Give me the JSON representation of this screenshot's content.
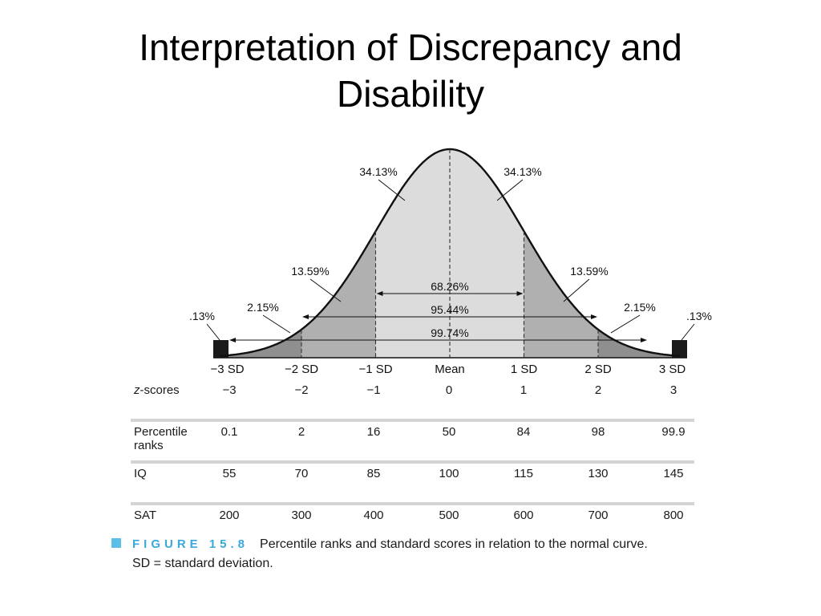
{
  "slide": {
    "title_line1": "Interpretation of Discrepancy and",
    "title_line2": "Disability"
  },
  "curve": {
    "area_labels": {
      "center_left": "34.13%",
      "center_right": "34.13%",
      "mid_left": "13.59%",
      "mid_right": "13.59%",
      "outer_left": "2.15%",
      "outer_right": "2.15%",
      "tail_left": ".13%",
      "tail_right": ".13%"
    },
    "range_labels": [
      "68.26%",
      "95.44%",
      "99.74%"
    ],
    "sd_labels": [
      "−3 SD",
      "−2 SD",
      "−1 SD",
      "Mean",
      "1 SD",
      "2 SD",
      "3 SD"
    ],
    "colors": {
      "center": "#dcdcdc",
      "mid": "#b0b0b0",
      "outer": "#8f8f8f",
      "tail": "#1a1a1a"
    }
  },
  "table": {
    "rows": [
      {
        "label_italic": "z",
        "label_rest": "-scores",
        "label_line2": "",
        "values": [
          "−3",
          "−2",
          "−1",
          "0",
          "1",
          "2",
          "3"
        ]
      },
      {
        "label_italic": "",
        "label_rest": "Percentile",
        "label_line2": "ranks",
        "values": [
          "0.1",
          "2",
          "16",
          "50",
          "84",
          "98",
          "99.9"
        ]
      },
      {
        "label_italic": "",
        "label_rest": "IQ",
        "label_line2": "",
        "values": [
          "55",
          "70",
          "85",
          "100",
          "115",
          "130",
          "145"
        ]
      },
      {
        "label_italic": "",
        "label_rest": "SAT",
        "label_line2": "",
        "values": [
          "200",
          "300",
          "400",
          "500",
          "600",
          "700",
          "800"
        ]
      }
    ]
  },
  "caption": {
    "figure_label": "FIGURE 15.8",
    "text_line1": "Percentile ranks and standard scores in relation to the normal curve.",
    "text_line2": "SD = standard deviation."
  }
}
